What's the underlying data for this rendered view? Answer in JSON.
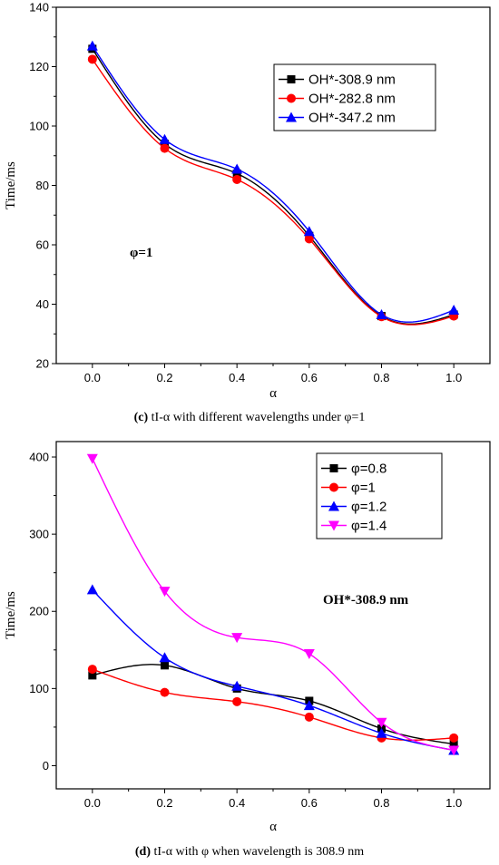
{
  "chart_data": [
    {
      "type": "line",
      "xlabel": "α",
      "ylabel": "Time/ms",
      "xlim": [
        -0.1,
        1.1
      ],
      "ylim": [
        20,
        140
      ],
      "xticks": [
        "0.0",
        "0.2",
        "0.4",
        "0.6",
        "0.8",
        "1.0"
      ],
      "yticks": [
        "20",
        "40",
        "60",
        "80",
        "100",
        "120",
        "140"
      ],
      "legend_position": "top-right",
      "annotation": "φ=1",
      "caption_tag": "(c)",
      "caption_text": "tI-α with different wavelengths under φ=1",
      "x": [
        0.0,
        0.2,
        0.4,
        0.6,
        0.8,
        1.0
      ],
      "series": [
        {
          "name": "OH*-308.9 nm",
          "color": "#000000",
          "marker": "square",
          "values": [
            126,
            94,
            84,
            63,
            36,
            36.5
          ]
        },
        {
          "name": "OH*-282.8 nm",
          "color": "#ff0000",
          "marker": "circle",
          "values": [
            122.5,
            92.5,
            82,
            62,
            35.8,
            36
          ]
        },
        {
          "name": "OH*-347.2 nm",
          "color": "#0000ff",
          "marker": "triangle-up",
          "values": [
            127,
            95.5,
            85.5,
            64.5,
            36.5,
            38
          ]
        }
      ]
    },
    {
      "type": "line",
      "xlabel": "α",
      "ylabel": "Time/ms",
      "xlim": [
        -0.1,
        1.1
      ],
      "ylim": [
        -30,
        420
      ],
      "xticks": [
        "0.0",
        "0.2",
        "0.4",
        "0.6",
        "0.8",
        "1.0"
      ],
      "yticks": [
        "0",
        "100",
        "200",
        "300",
        "400"
      ],
      "legend_position": "top-right",
      "annotation": "OH*-308.9 nm",
      "caption_tag": "(d)",
      "caption_text": "tI-α with φ when wavelength is 308.9 nm",
      "x": [
        0.0,
        0.2,
        0.4,
        0.6,
        0.8,
        1.0
      ],
      "series": [
        {
          "name": "φ=0.8",
          "color": "#000000",
          "marker": "square",
          "values": [
            117,
            130,
            100,
            84,
            48,
            28
          ]
        },
        {
          "name": "φ=1",
          "color": "#ff0000",
          "marker": "circle",
          "values": [
            125,
            95,
            83,
            63,
            36,
            36
          ]
        },
        {
          "name": "φ=1.2",
          "color": "#0000ff",
          "marker": "triangle-up",
          "values": [
            228,
            140,
            103,
            78,
            42,
            20
          ]
        },
        {
          "name": "φ=1.4",
          "color": "#ff00ff",
          "marker": "triangle-down",
          "values": [
            398,
            226,
            166,
            145,
            56,
            20
          ]
        }
      ]
    }
  ]
}
